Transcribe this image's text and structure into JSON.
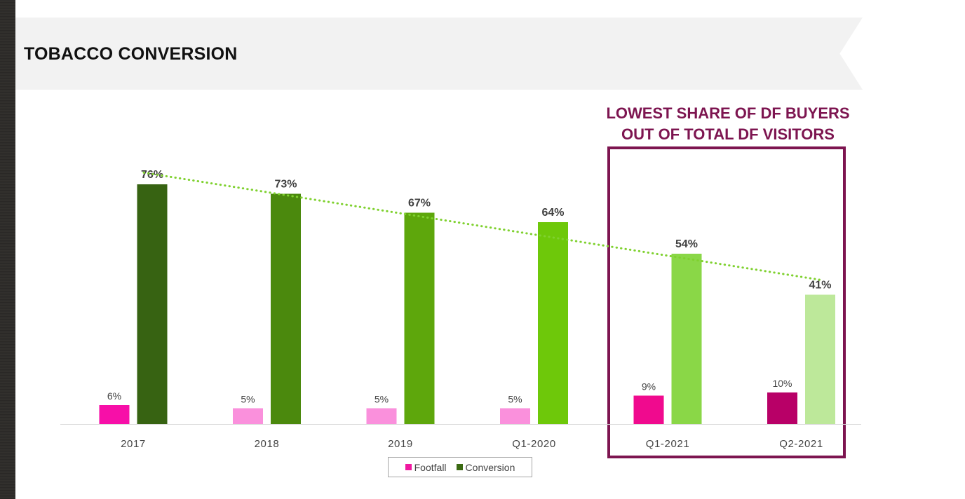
{
  "page": {
    "title": "TOBACCO CONVERSION",
    "callout_lines": [
      "LOWEST SHARE OF DF BUYERS",
      "OUT OF TOTAL DF VISITORS"
    ]
  },
  "colors": {
    "callout": "#7d1550",
    "trendline": "#7fd12f",
    "footfall_legend": "#f018a0",
    "conversion_legend": "#3b6a12"
  },
  "chart_data": {
    "type": "bar",
    "title": "",
    "xlabel": "",
    "ylabel": "",
    "ylim": [
      0,
      85
    ],
    "grid": false,
    "legend_placement": "bottom",
    "categories": [
      "2017",
      "2018",
      "2019",
      "Q1-2020",
      "Q1-2021",
      "Q2-2021"
    ],
    "series": [
      {
        "name": "Footfall",
        "values": [
          6,
          5,
          5,
          5,
          9,
          10
        ],
        "labels": [
          "6%",
          "5%",
          "5%",
          "5%",
          "9%",
          "10%"
        ],
        "colors": [
          "#f70fa8",
          "#fa90dc",
          "#fa90dc",
          "#fa90dc",
          "#f00a8e",
          "#b80067"
        ]
      },
      {
        "name": "Conversion",
        "values": [
          76,
          73,
          67,
          64,
          54,
          41
        ],
        "labels": [
          "76%",
          "73%",
          "67%",
          "64%",
          "54%",
          "41%"
        ],
        "colors": [
          "#376312",
          "#4b890d",
          "#5ea70c",
          "#6ec80a",
          "#8ad747",
          "#bde89a"
        ]
      }
    ],
    "trendline": {
      "series": "Conversion",
      "style": "dotted"
    }
  }
}
